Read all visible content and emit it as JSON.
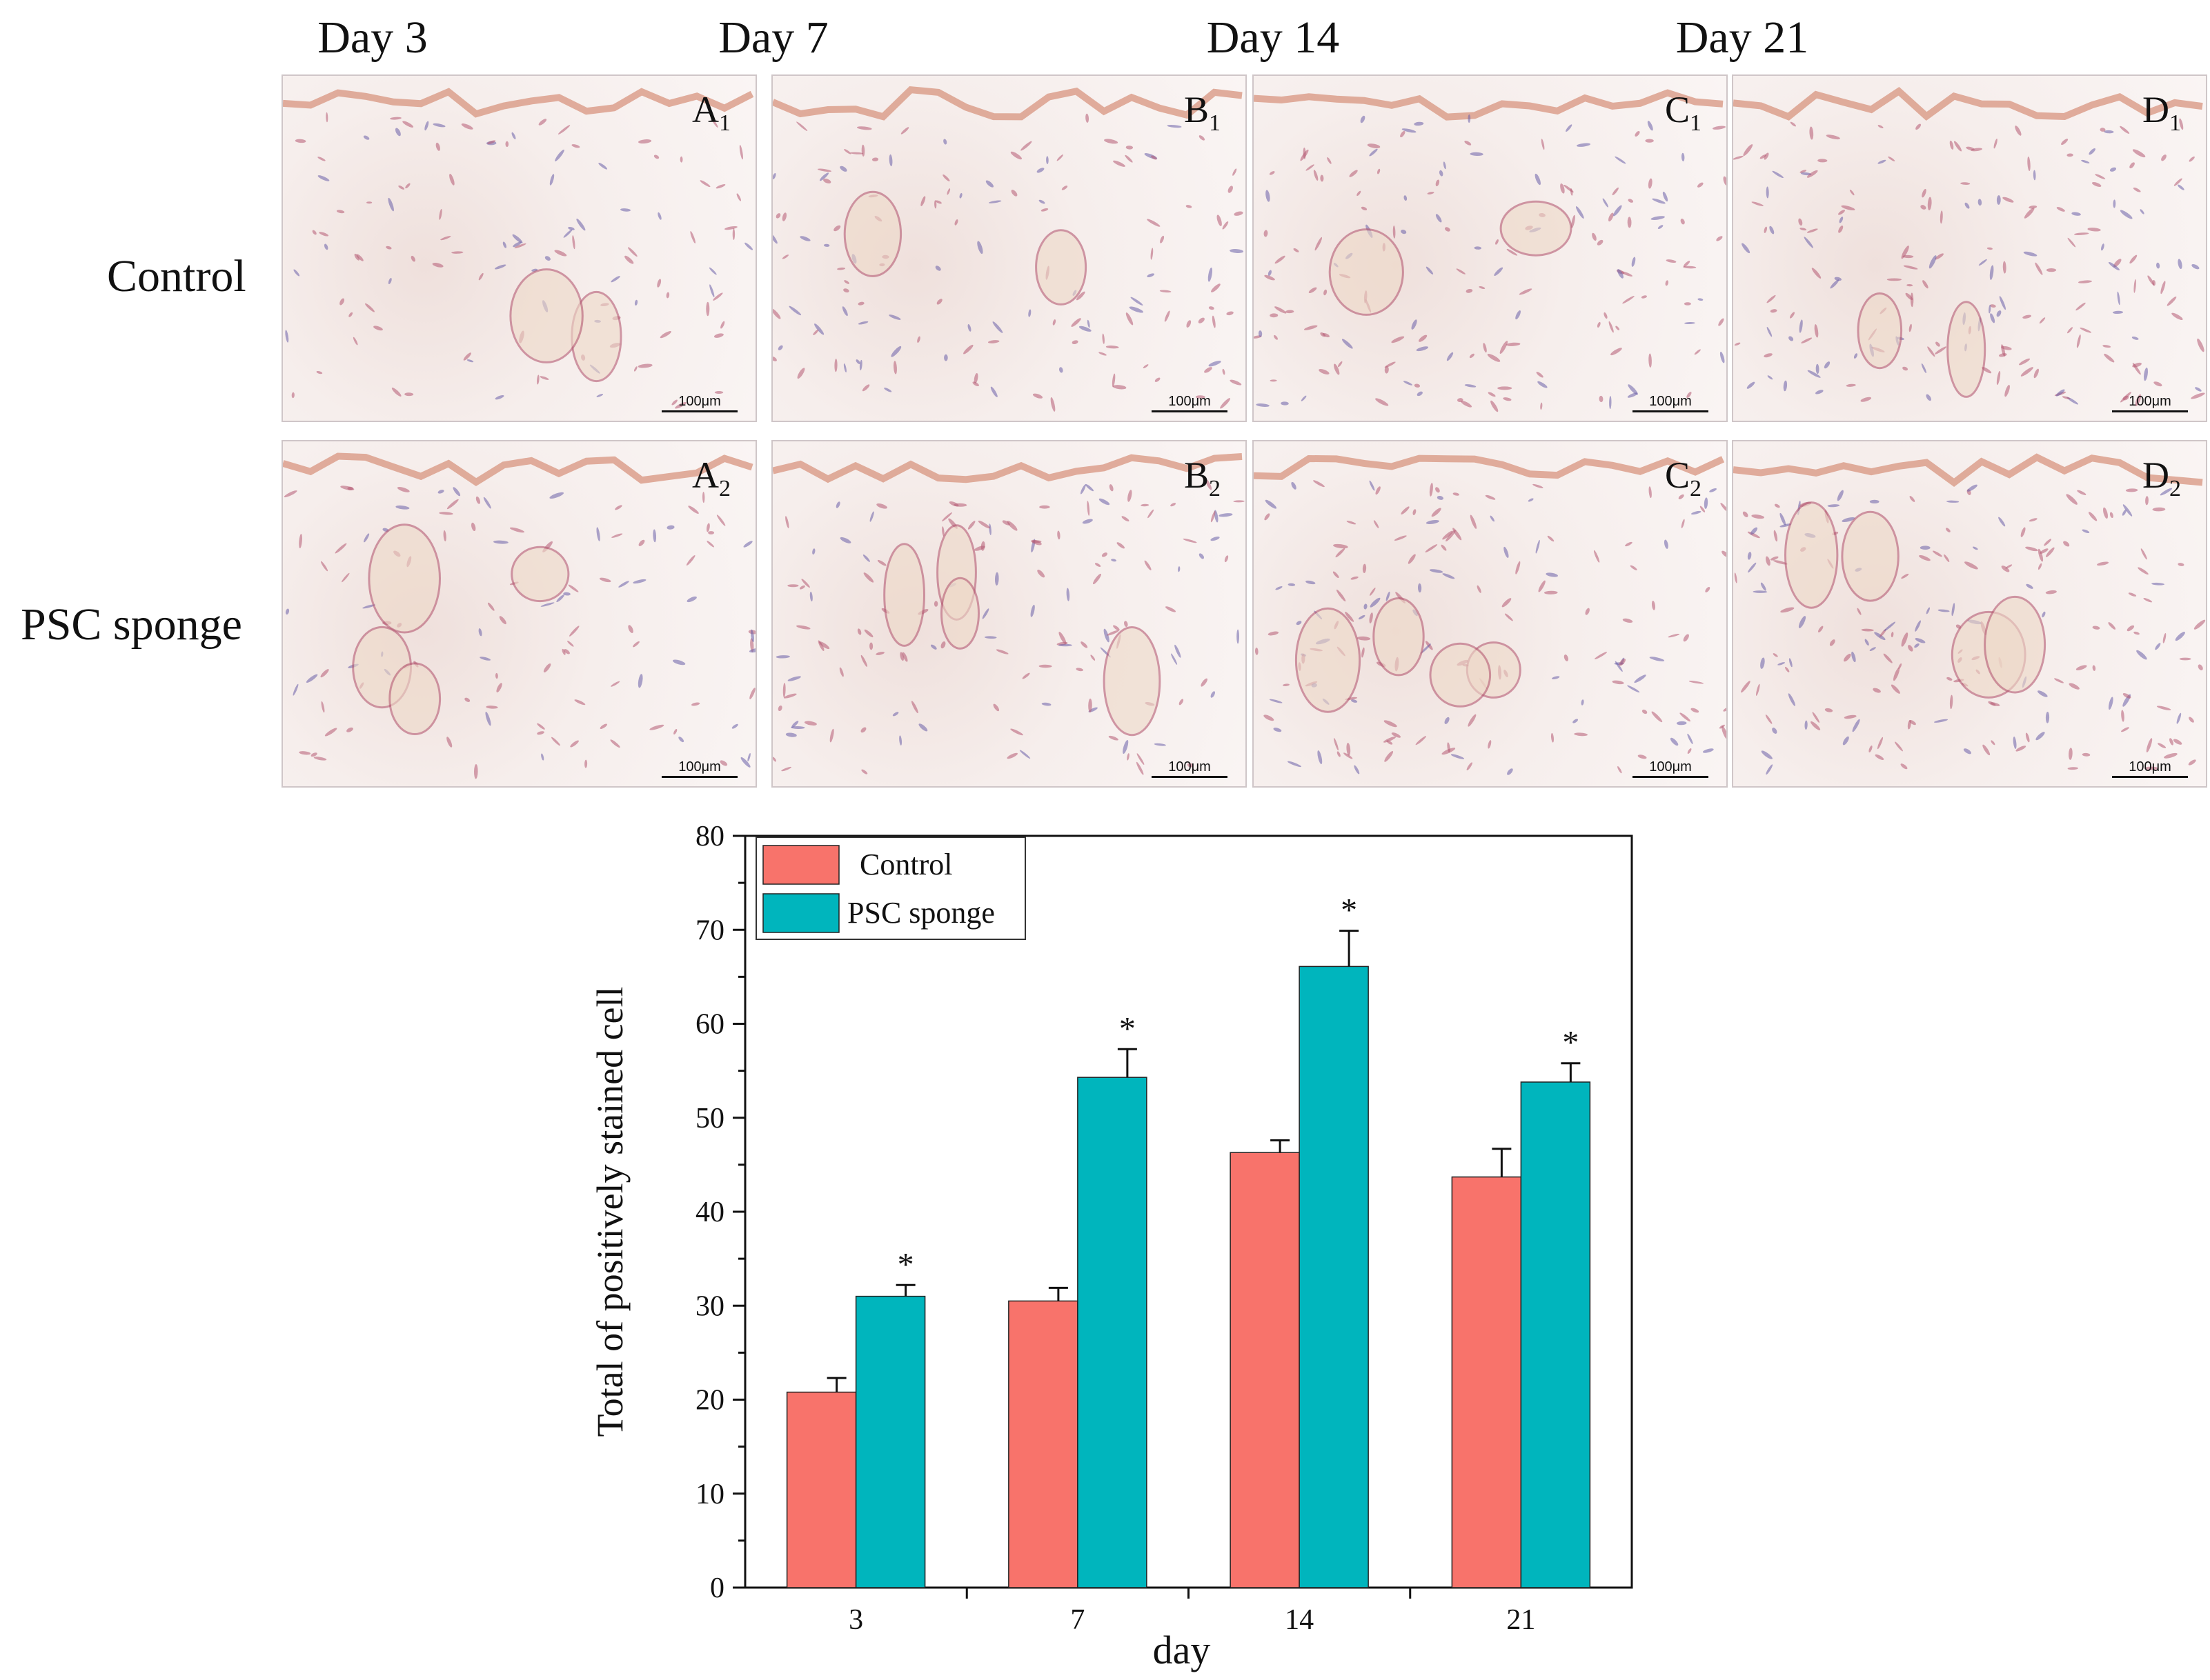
{
  "figure": {
    "columns": [
      "Day 3",
      "Day 7",
      "Day 14",
      "Day 21"
    ],
    "rows": [
      "Control",
      "PSC sponge"
    ],
    "panels": [
      {
        "letter": "A",
        "sub": "1"
      },
      {
        "letter": "B",
        "sub": "1"
      },
      {
        "letter": "C",
        "sub": "1"
      },
      {
        "letter": "D",
        "sub": "1"
      },
      {
        "letter": "A",
        "sub": "2"
      },
      {
        "letter": "B",
        "sub": "2"
      },
      {
        "letter": "C",
        "sub": "2"
      },
      {
        "letter": "D",
        "sub": "2"
      }
    ],
    "scale_label": "100μm",
    "stain_color": "#b55a72",
    "nuclei_color": "#6a5fa8",
    "epidermis_color": "#d99a86"
  },
  "chart_data": {
    "type": "bar",
    "categories": [
      "3",
      "7",
      "14",
      "21"
    ],
    "xlabel": "day",
    "ylabel": "Total of positively stained cell",
    "ylim": [
      0,
      80
    ],
    "yticks": [
      0,
      10,
      20,
      30,
      40,
      50,
      60,
      70,
      80
    ],
    "series": [
      {
        "name": "Control",
        "color": "#f8736b",
        "values": [
          20.8,
          30.5,
          46.3,
          43.7
        ],
        "errors": [
          1.5,
          1.4,
          1.3,
          3.0
        ]
      },
      {
        "name": "PSC sponge",
        "color": "#00b5bd",
        "values": [
          31.0,
          54.3,
          66.1,
          53.8
        ],
        "errors": [
          1.2,
          3.0,
          3.8,
          2.0
        ]
      }
    ],
    "annotations": [
      "*",
      "*",
      "*",
      "*"
    ],
    "legend": "top-left"
  }
}
